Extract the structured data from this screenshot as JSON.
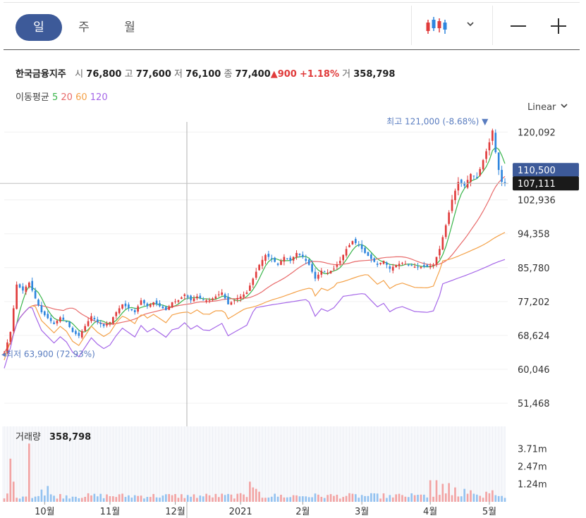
{
  "toolbar": {
    "periods": [
      "일",
      "주",
      "월"
    ],
    "active_period": "일",
    "chart_type_icon": "candlestick-icon",
    "dropdown_icon": "chevron-down-icon",
    "zoom_out_icon": "minus-icon",
    "zoom_in_icon": "plus-icon"
  },
  "quote": {
    "name": "한국금융지주",
    "open_label": "시",
    "open": "76,800",
    "high_label": "고",
    "high": "77,600",
    "low_label": "저",
    "low": "76,100",
    "close_label": "종",
    "close": "77,400",
    "change_arrow": "▲",
    "change": "900",
    "change_pct": "+1.18%",
    "volume_label": "거",
    "volume": "358,798"
  },
  "moving_average": {
    "label": "이동평균",
    "periods": [
      "5",
      "20",
      "60",
      "120"
    ],
    "colors": [
      "#39b54a",
      "#e86a6a",
      "#f4a148",
      "#a566e8"
    ]
  },
  "scale_mode": "Linear",
  "colors": {
    "up": "#e03b3b",
    "down": "#2f86de",
    "accent": "#3d5a99",
    "crosshair_label_bg": "#1a1a1a",
    "volume_up": "#f2a3a3",
    "volume_down": "#93c2f0"
  },
  "chart_data": {
    "type": "candlestick",
    "title": "한국금융지주",
    "y_ticks": [
      "120,092",
      "102,936",
      "94,358",
      "85,780",
      "77,202",
      "68,624",
      "60,046",
      "51,468"
    ],
    "y_tick_values": [
      120092,
      102936,
      94358,
      85780,
      77202,
      68624,
      60046,
      51468
    ],
    "ylim": [
      46500,
      123200
    ],
    "x_labels": [
      "10월",
      "11월",
      "12월",
      "2021",
      "2월",
      "3월",
      "4월",
      "5월"
    ],
    "x_label_index": [
      13,
      34,
      55,
      76,
      96,
      115,
      137,
      156
    ],
    "n_days": 162,
    "price_anchors": [
      [
        0,
        64200
      ],
      [
        2,
        69500
      ],
      [
        4,
        81500
      ],
      [
        6,
        80000
      ],
      [
        8,
        82000
      ],
      [
        10,
        78000
      ],
      [
        12,
        74500
      ],
      [
        14,
        73000
      ],
      [
        16,
        71500
      ],
      [
        18,
        73200
      ],
      [
        20,
        72000
      ],
      [
        22,
        69500
      ],
      [
        24,
        68500
      ],
      [
        26,
        71000
      ],
      [
        28,
        73500
      ],
      [
        30,
        72000
      ],
      [
        32,
        71000
      ],
      [
        34,
        72000
      ],
      [
        36,
        74500
      ],
      [
        38,
        76500
      ],
      [
        40,
        75500
      ],
      [
        42,
        74500
      ],
      [
        44,
        77500
      ],
      [
        46,
        76000
      ],
      [
        48,
        77000
      ],
      [
        50,
        76000
      ],
      [
        52,
        75000
      ],
      [
        54,
        77000
      ],
      [
        56,
        77500
      ],
      [
        58,
        79000
      ],
      [
        60,
        77500
      ],
      [
        62,
        78500
      ],
      [
        64,
        77500
      ],
      [
        66,
        77500
      ],
      [
        68,
        78500
      ],
      [
        70,
        79500
      ],
      [
        72,
        76500
      ],
      [
        74,
        77500
      ],
      [
        76,
        78500
      ],
      [
        78,
        79500
      ],
      [
        80,
        83000
      ],
      [
        82,
        86500
      ],
      [
        84,
        89000
      ],
      [
        86,
        88000
      ],
      [
        88,
        86500
      ],
      [
        90,
        88500
      ],
      [
        92,
        87500
      ],
      [
        94,
        89500
      ],
      [
        96,
        88500
      ],
      [
        98,
        86500
      ],
      [
        100,
        83000
      ],
      [
        102,
        85000
      ],
      [
        104,
        84500
      ],
      [
        106,
        85500
      ],
      [
        108,
        87500
      ],
      [
        110,
        90500
      ],
      [
        112,
        92500
      ],
      [
        114,
        91500
      ],
      [
        116,
        89500
      ],
      [
        118,
        88000
      ],
      [
        120,
        86500
      ],
      [
        122,
        87500
      ],
      [
        124,
        85500
      ],
      [
        126,
        86500
      ],
      [
        128,
        87000
      ],
      [
        130,
        86500
      ],
      [
        132,
        86000
      ],
      [
        134,
        86000
      ],
      [
        136,
        86000
      ],
      [
        138,
        86500
      ],
      [
        140,
        90500
      ],
      [
        142,
        96500
      ],
      [
        144,
        103000
      ],
      [
        146,
        107500
      ],
      [
        148,
        106500
      ],
      [
        150,
        109500
      ],
      [
        152,
        108500
      ],
      [
        154,
        113000
      ],
      [
        156,
        117500
      ],
      [
        157,
        120500
      ],
      [
        158,
        115000
      ],
      [
        159,
        110500
      ],
      [
        160,
        107500
      ],
      [
        161,
        107111
      ]
    ],
    "series": [
      {
        "name": "5",
        "type": "line"
      },
      {
        "name": "20",
        "type": "line"
      },
      {
        "name": "60",
        "type": "line"
      },
      {
        "name": "120",
        "type": "line"
      }
    ],
    "annotations": {
      "high_label": "최고",
      "high_value": "121,000",
      "high_pct": "(-8.68%)",
      "high_marker": "▼",
      "low_label": "최저",
      "low_value": "63,900",
      "low_pct": "(72.93%)"
    },
    "current_price": {
      "label": "110,500",
      "value": 110500
    },
    "crosshair": {
      "label": "107,111",
      "value": 107111
    },
    "volume": {
      "label": "거래량",
      "value": "358,798",
      "ticks": [
        "3.71m",
        "2.47m",
        "1.24m"
      ],
      "tick_values": [
        3710000,
        2470000,
        1240000
      ],
      "ylim": [
        0,
        5000000
      ],
      "spikes": [
        [
          2,
          3000000
        ],
        [
          3,
          1400000
        ],
        [
          8,
          4050000
        ],
        [
          12,
          850000
        ],
        [
          14,
          1100000
        ],
        [
          60,
          350000
        ],
        [
          79,
          1400000
        ],
        [
          80,
          1000000
        ],
        [
          81,
          900000
        ],
        [
          82,
          700000
        ],
        [
          90,
          300000
        ],
        [
          125,
          300000
        ],
        [
          134,
          500000
        ],
        [
          137,
          1500000
        ],
        [
          139,
          1500000
        ],
        [
          141,
          1250000
        ],
        [
          143,
          1300000
        ],
        [
          145,
          1000000
        ],
        [
          148,
          900000
        ],
        [
          150,
          800000
        ],
        [
          155,
          700000
        ],
        [
          157,
          800000
        ]
      ]
    }
  }
}
